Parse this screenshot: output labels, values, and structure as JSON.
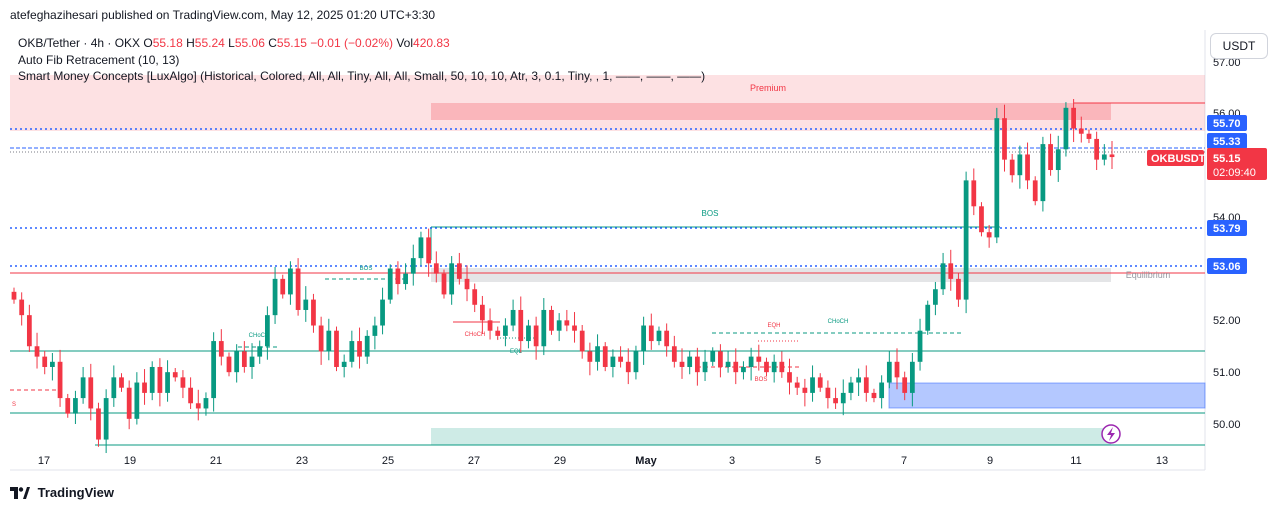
{
  "header": {
    "publish_info": "atefeghazihesari published on TradingView.com, May 12, 2025 01:20 UTC+3:30"
  },
  "legend": {
    "symbol": "OKB/Tether · 4h · OKX",
    "open_label": "O",
    "open": "55.18",
    "high_label": "H",
    "high": "55.24",
    "low_label": "L",
    "low": "55.06",
    "close_label": "C",
    "close": "55.15",
    "change": "−0.01 (−0.02%)",
    "vol_label": "Vol",
    "vol": "420.83",
    "indicator1": "Auto Fib Retracement (10, 13)",
    "indicator2": "Smart Money Concepts [LuxAlgo] (Historical, Colored, All, All, Tiny, All, All, Small, 50, 10, 10, Atr, 3, 0.1, Tiny, , 1, ——, ——, ——)"
  },
  "currency_button": "USDT",
  "footer": {
    "brand": "TradingView"
  },
  "colors": {
    "up": "#089981",
    "down": "#f23645",
    "blue_level": "#2962ff"
  },
  "chart_data": {
    "type": "candlestick",
    "symbol": "OKBUSDT",
    "timeframe": "4h",
    "y_ticks": [
      "57.00",
      "56.00",
      "54.00",
      "52.00",
      "51.00",
      "50.00"
    ],
    "x_ticks": [
      "17",
      "19",
      "21",
      "23",
      "25",
      "27",
      "29",
      "May",
      "3",
      "5",
      "7",
      "9",
      "11",
      "13"
    ],
    "price_labels": [
      {
        "value": 55.7,
        "label": "55.70"
      },
      {
        "value": 55.33,
        "label": "55.33"
      },
      {
        "value": 53.79,
        "label": "53.79"
      },
      {
        "value": 53.06,
        "label": "53.06"
      }
    ],
    "current": {
      "name": "OKBUSDT",
      "price": "55.15",
      "countdown": "02:09:40"
    },
    "zone_labels": {
      "premium": "Premium",
      "equilibrium": "Equilibrium"
    },
    "structure_labels": {
      "bos_main": "BOS",
      "bos_small": "BOS",
      "bos_low": "BOS",
      "choch1": "CHoCH",
      "choch2": "CHoCH",
      "choch3": "CHoCH",
      "eqh": "EQH",
      "eql": "EQL",
      "s": "S"
    },
    "closes": [
      52.4,
      52.1,
      51.5,
      51.3,
      51.1,
      51.2,
      50.5,
      50.2,
      50.5,
      50.9,
      50.3,
      49.7,
      50.5,
      50.9,
      50.7,
      50.1,
      50.8,
      50.6,
      51.1,
      50.6,
      51.0,
      50.9,
      50.7,
      50.4,
      50.3,
      50.5,
      51.6,
      51.3,
      51.0,
      51.4,
      51.1,
      51.3,
      51.5,
      52.1,
      52.8,
      52.5,
      53.0,
      52.2,
      52.4,
      51.9,
      51.4,
      51.8,
      51.1,
      51.2,
      51.6,
      51.3,
      51.7,
      51.9,
      52.4,
      53.0,
      52.7,
      52.9,
      53.2,
      53.6,
      53.1,
      52.9,
      52.5,
      53.1,
      52.8,
      52.6,
      52.3,
      52.0,
      51.8,
      51.7,
      51.9,
      52.2,
      51.6,
      51.9,
      51.5,
      52.2,
      51.8,
      52.0,
      51.9,
      51.8,
      51.4,
      51.2,
      51.5,
      51.1,
      51.3,
      51.2,
      51.0,
      51.4,
      51.9,
      51.6,
      51.8,
      51.5,
      51.2,
      51.1,
      51.3,
      51.0,
      51.2,
      51.4,
      51.1,
      51.2,
      51.0,
      51.1,
      51.3,
      51.2,
      51.0,
      51.2,
      51.0,
      50.8,
      50.7,
      50.6,
      50.9,
      50.7,
      50.5,
      50.4,
      50.6,
      50.8,
      50.9,
      50.6,
      50.5,
      50.8,
      51.2,
      50.9,
      50.6,
      51.2,
      51.8,
      52.3,
      52.6,
      53.1,
      52.8,
      52.4,
      54.7,
      54.2,
      53.7,
      53.6,
      55.9,
      55.1,
      54.8,
      55.2,
      54.7,
      54.3,
      55.4,
      54.9,
      55.3,
      56.1,
      55.7,
      55.6,
      55.5,
      55.1,
      55.2,
      55.15
    ]
  }
}
